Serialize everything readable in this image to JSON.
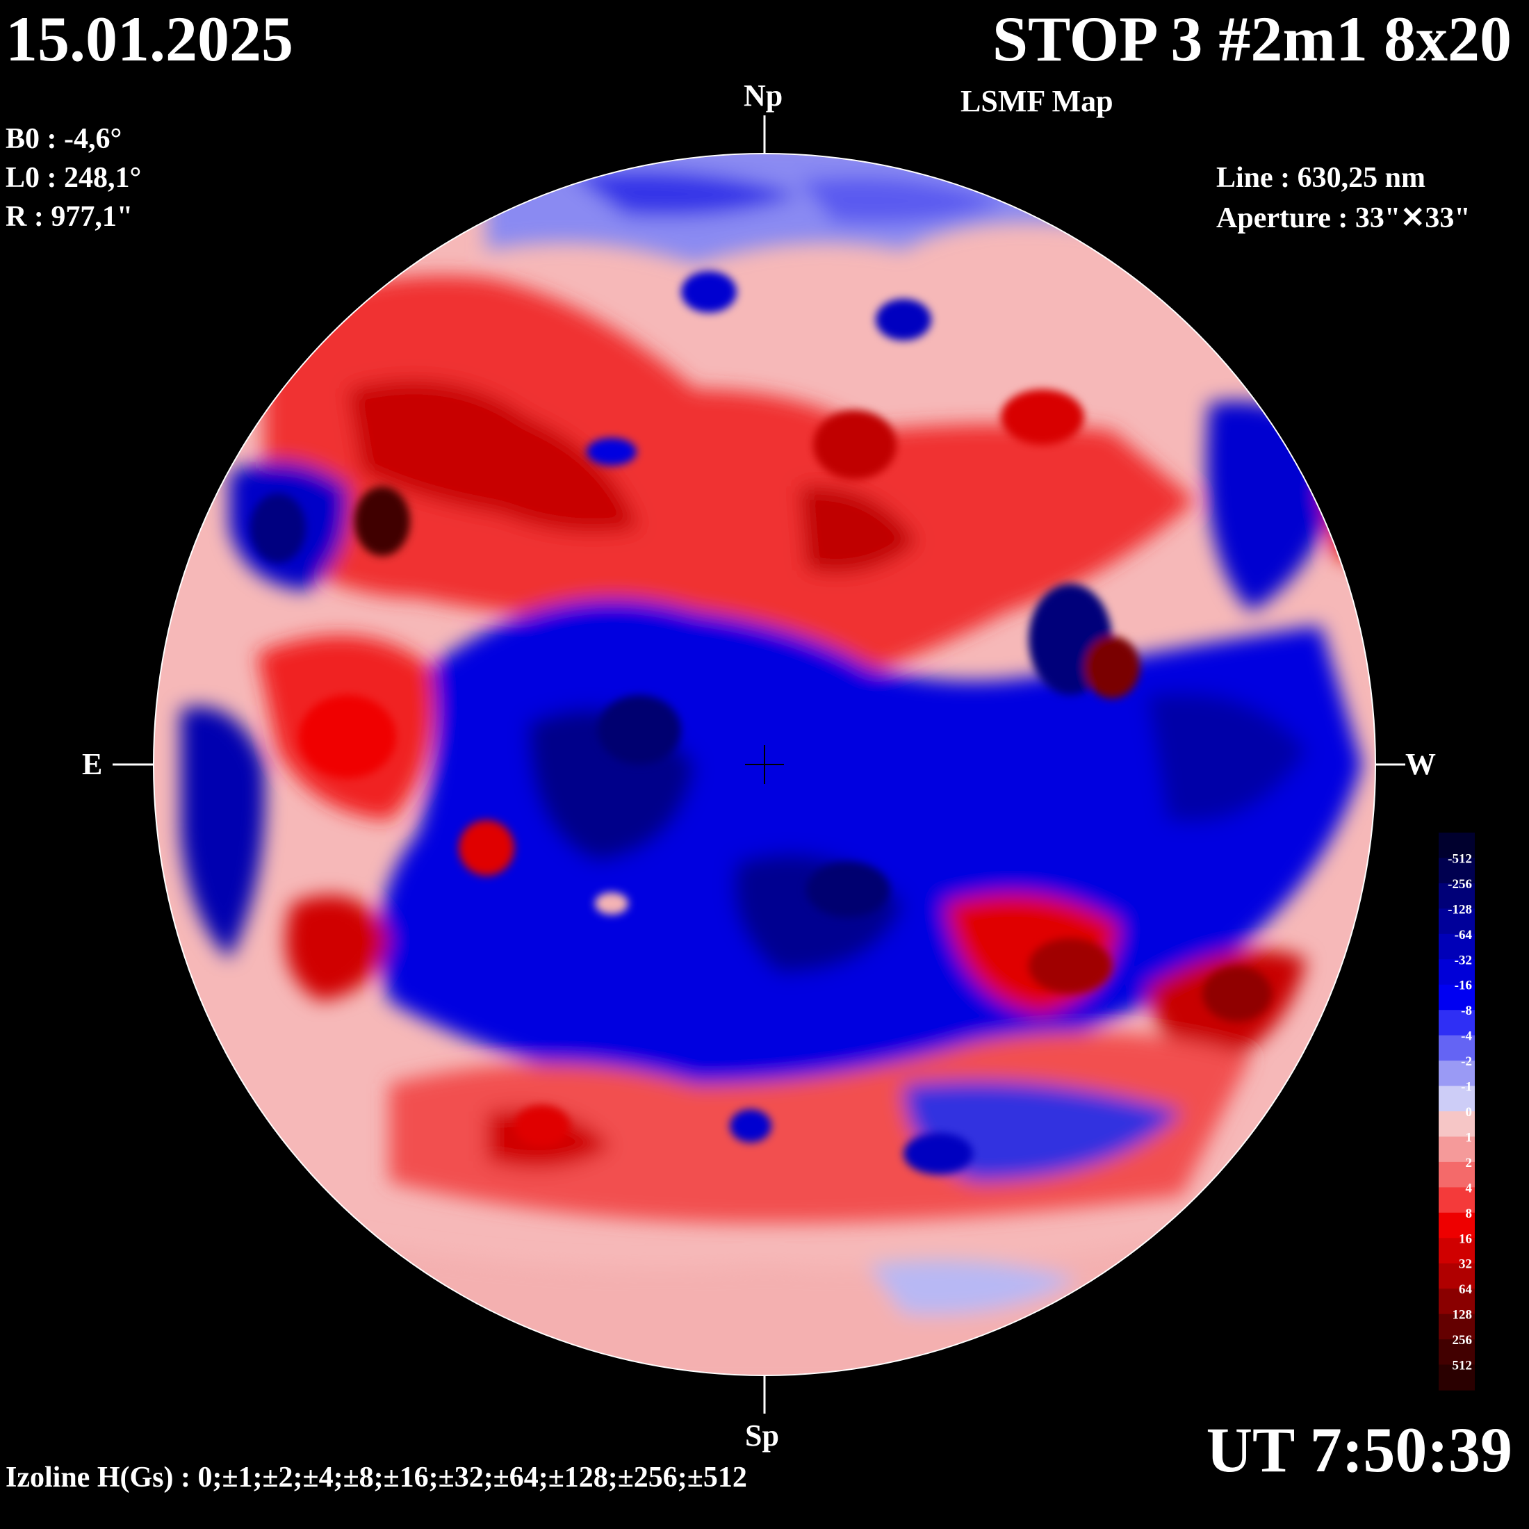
{
  "header": {
    "date": "15.01.2025",
    "title": "STOP 3 #2m1 8x20",
    "subtitle": "LSMF  Map"
  },
  "params": {
    "b0": "B0 : -4,6°",
    "l0": "L0 : 248,1°",
    "r": "R  : 977,1\"",
    "line": "Line :  630,25 nm",
    "aperture": "Aperture : 33\"✕33\""
  },
  "directions": {
    "north": "Np",
    "south": "Sp",
    "east": "E",
    "west": "W"
  },
  "time": "UT 7:50:39",
  "izoline": "Izoline H(Gs) : 0;±1;±2;±4;±8;±16;±32;±64;±128;±256;±512",
  "legend": {
    "labels": [
      "-512",
      "-256",
      "-128",
      "-64",
      "-32",
      "-16",
      "-8",
      "-4",
      "-2",
      "-1",
      "0",
      "1",
      "2",
      "4",
      "8",
      "16",
      "32",
      "64",
      "128",
      "256",
      "512"
    ],
    "colors": [
      "#00002e",
      "#000050",
      "#000078",
      "#00009a",
      "#0000b8",
      "#0000d8",
      "#0000f2",
      "#2f2ff5",
      "#6464f4",
      "#9a9af5",
      "#cdcdf7",
      "#f6c6c6",
      "#f59a9a",
      "#f46a6a",
      "#f43a3a",
      "#ee0000",
      "#d00000",
      "#b00000",
      "#8a0000",
      "#640000",
      "#420000",
      "#2a0000"
    ]
  }
}
